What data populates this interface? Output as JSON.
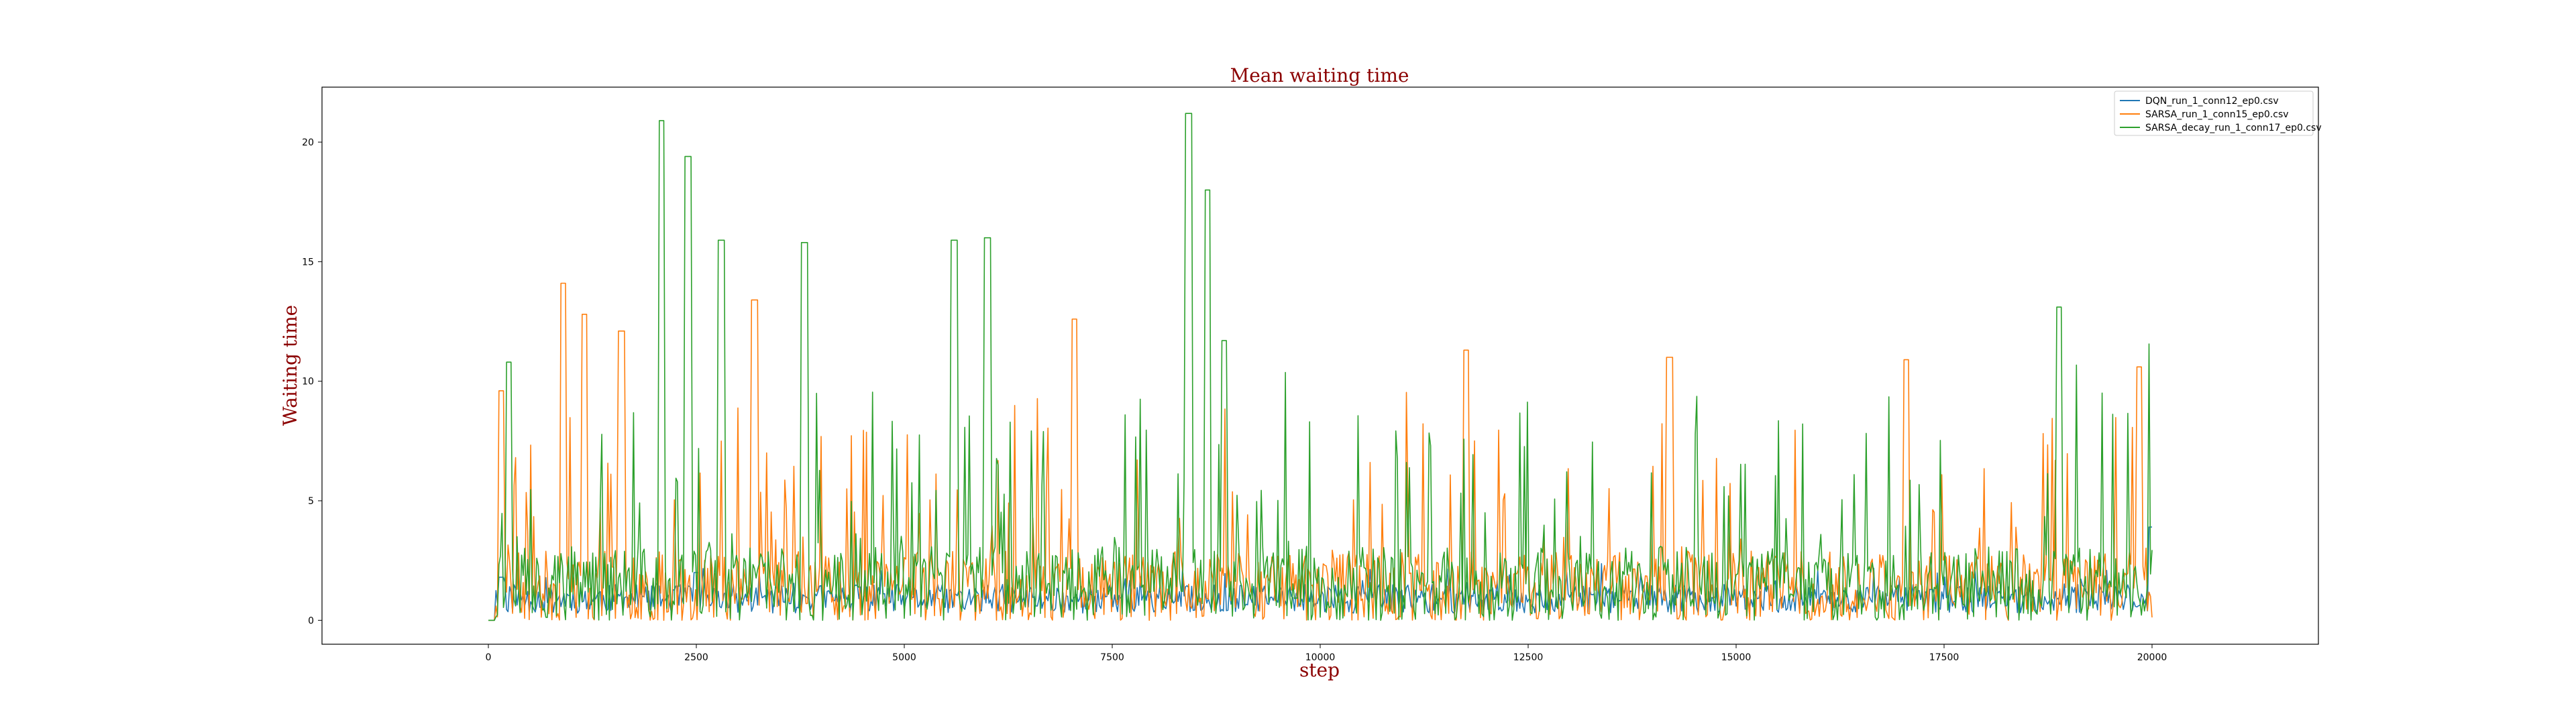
{
  "chart_data": {
    "type": "line",
    "title": "Mean waiting time",
    "xlabel": "step",
    "ylabel": "Waiting time",
    "xlim": [
      -2000,
      22000
    ],
    "ylim": [
      -1,
      22.3
    ],
    "xticks": [
      0,
      2500,
      5000,
      7500,
      10000,
      12500,
      15000,
      17500,
      20000
    ],
    "yticks": [
      0,
      5,
      10,
      15,
      20
    ],
    "grid": false,
    "legend_position": "top-right",
    "series": [
      {
        "name": "DQN_run_1_conn12_ep0.csv",
        "color": "#1f77b4",
        "base": 0.9,
        "noise": 0.6,
        "spike_prob": 0.04,
        "spike_max": 1.2,
        "seed": 11,
        "peaks": [
          [
            50,
            0
          ],
          [
            150,
            1.8
          ],
          [
            2500,
            2.0
          ],
          [
            20000,
            3.9
          ]
        ]
      },
      {
        "name": "SARSA_run_1_conn15_ep0.csv",
        "color": "#ff7f0e",
        "base": 1.4,
        "noise": 1.5,
        "spike_prob": 0.11,
        "spike_max": 7.5,
        "seed": 23,
        "peaks": [
          [
            50,
            0
          ],
          [
            150,
            9.6
          ],
          [
            900,
            14.1
          ],
          [
            1150,
            12.8
          ],
          [
            1600,
            12.1
          ],
          [
            3200,
            13.4
          ],
          [
            7050,
            12.6
          ],
          [
            11750,
            11.3
          ],
          [
            14200,
            11.0
          ],
          [
            17050,
            10.9
          ],
          [
            19850,
            10.6
          ]
        ]
      },
      {
        "name": "SARSA_decay_run_1_conn17_ep0.csv",
        "color": "#2ca02c",
        "base": 1.5,
        "noise": 1.6,
        "spike_prob": 0.11,
        "spike_max": 8.5,
        "seed": 37,
        "peaks": [
          [
            50,
            0
          ],
          [
            250,
            10.8
          ],
          [
            2080,
            20.9
          ],
          [
            2400,
            19.4
          ],
          [
            2800,
            15.9
          ],
          [
            3800,
            15.8
          ],
          [
            5600,
            15.9
          ],
          [
            6000,
            16.0
          ],
          [
            8420,
            21.2
          ],
          [
            8650,
            18.0
          ],
          [
            8850,
            11.7
          ],
          [
            18880,
            13.1
          ]
        ]
      }
    ],
    "x_start": 0,
    "x_end": 20000,
    "samples": 1100
  }
}
